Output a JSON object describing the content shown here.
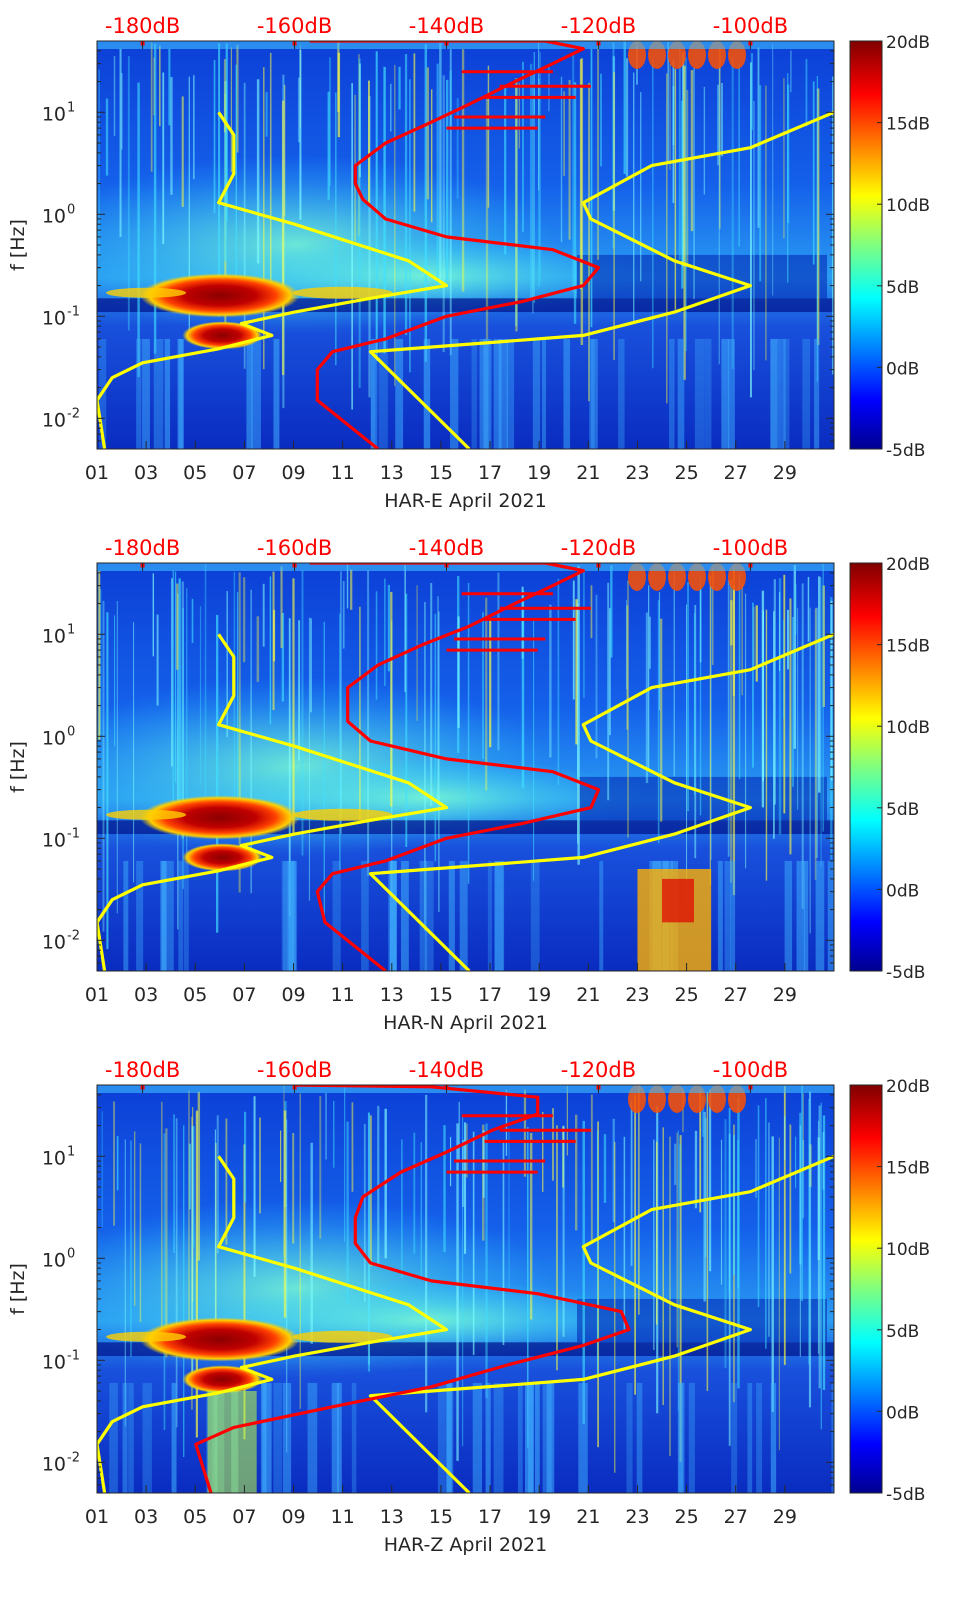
{
  "chart_data": [
    {
      "type": "heatmap",
      "xlabel": "HAR-E April 2021",
      "ylabel": "f [Hz]",
      "x_ticks": [
        "01",
        "03",
        "05",
        "07",
        "09",
        "11",
        "13",
        "15",
        "17",
        "19",
        "21",
        "23",
        "25",
        "27",
        "29"
      ],
      "top_ticks": [
        "-180dB",
        "-160dB",
        "-140dB",
        "-120dB",
        "-100dB"
      ],
      "y_ticks": [
        {
          "label": "10",
          "exp": "-2",
          "value": 0.01
        },
        {
          "label": "10",
          "exp": "-1",
          "value": 0.1
        },
        {
          "label": "10",
          "exp": "0",
          "value": 1
        },
        {
          "label": "10",
          "exp": "1",
          "value": 10
        }
      ],
      "ylim": [
        0.005,
        50
      ],
      "xlim": [
        1,
        31
      ],
      "top_xlim": [
        -186,
        -89
      ],
      "y_scale": "log",
      "colorbar": {
        "min": -5,
        "max": 20,
        "ticks": [
          "20dB",
          "15dB",
          "10dB",
          "5dB",
          "0dB",
          "-5dB"
        ]
      },
      "series": [
        {
          "color": "#ffff00",
          "points": [
            [
              -185,
              0.005
            ],
            [
              -186,
              0.015
            ],
            [
              -184,
              0.025
            ],
            [
              -180,
              0.035
            ],
            [
              -170,
              0.048
            ],
            [
              -163,
              0.065
            ],
            [
              -167,
              0.085
            ],
            [
              -160,
              0.11
            ],
            [
              -150,
              0.15
            ],
            [
              -140,
              0.2
            ],
            [
              -145,
              0.35
            ],
            [
              -160,
              0.8
            ],
            [
              -170,
              1.3
            ],
            [
              -168,
              2.5
            ],
            [
              -168,
              6
            ],
            [
              -170,
              10
            ]
          ]
        },
        {
          "color": "#ffff00",
          "points": [
            [
              -137,
              0.005
            ],
            [
              -150,
              0.045
            ],
            [
              -122,
              0.065
            ],
            [
              -110,
              0.11
            ],
            [
              -100,
              0.2
            ],
            [
              -110,
              0.35
            ],
            [
              -121,
              0.9
            ],
            [
              -122,
              1.3
            ],
            [
              -113,
              3
            ],
            [
              -100,
              4.5
            ],
            [
              -89,
              10
            ]
          ]
        },
        {
          "color": "#ff0000",
          "points": [
            [
              -149,
              0.005
            ],
            [
              -157,
              0.015
            ],
            [
              -157,
              0.03
            ],
            [
              -155,
              0.045
            ],
            [
              -148,
              0.06
            ],
            [
              -140,
              0.1
            ],
            [
              -130,
              0.14
            ],
            [
              -122,
              0.2
            ],
            [
              -120,
              0.3
            ],
            [
              -126,
              0.45
            ],
            [
              -140,
              0.6
            ],
            [
              -148,
              0.9
            ],
            [
              -151,
              1.4
            ],
            [
              -152,
              2
            ],
            [
              -152,
              3
            ],
            [
              -148,
              5
            ],
            [
              -142,
              8
            ],
            [
              -137,
              12
            ],
            [
              -131,
              20
            ],
            [
              -126,
              30
            ],
            [
              -122,
              42
            ],
            [
              -127,
              50
            ],
            [
              -158,
              50
            ]
          ]
        }
      ]
    },
    {
      "type": "heatmap",
      "xlabel": "HAR-N April 2021",
      "ylabel": "f [Hz]",
      "x_ticks": [
        "01",
        "03",
        "05",
        "07",
        "09",
        "11",
        "13",
        "15",
        "17",
        "19",
        "21",
        "23",
        "25",
        "27",
        "29"
      ],
      "top_ticks": [
        "-180dB",
        "-160dB",
        "-140dB",
        "-120dB",
        "-100dB"
      ],
      "y_ticks": [
        {
          "label": "10",
          "exp": "-2",
          "value": 0.01
        },
        {
          "label": "10",
          "exp": "-1",
          "value": 0.1
        },
        {
          "label": "10",
          "exp": "0",
          "value": 1
        },
        {
          "label": "10",
          "exp": "1",
          "value": 10
        }
      ],
      "ylim": [
        0.005,
        50
      ],
      "xlim": [
        1,
        31
      ],
      "top_xlim": [
        -186,
        -89
      ],
      "y_scale": "log",
      "colorbar": {
        "min": -5,
        "max": 20,
        "ticks": [
          "20dB",
          "15dB",
          "10dB",
          "5dB",
          "0dB",
          "-5dB"
        ]
      },
      "series": [
        {
          "color": "#ffff00",
          "points": [
            [
              -185,
              0.005
            ],
            [
              -186,
              0.015
            ],
            [
              -184,
              0.025
            ],
            [
              -180,
              0.035
            ],
            [
              -170,
              0.048
            ],
            [
              -163,
              0.065
            ],
            [
              -167,
              0.085
            ],
            [
              -160,
              0.11
            ],
            [
              -150,
              0.15
            ],
            [
              -140,
              0.2
            ],
            [
              -145,
              0.35
            ],
            [
              -160,
              0.8
            ],
            [
              -170,
              1.3
            ],
            [
              -168,
              2.5
            ],
            [
              -168,
              6
            ],
            [
              -170,
              10
            ]
          ]
        },
        {
          "color": "#ffff00",
          "points": [
            [
              -137,
              0.005
            ],
            [
              -150,
              0.045
            ],
            [
              -122,
              0.065
            ],
            [
              -110,
              0.11
            ],
            [
              -100,
              0.2
            ],
            [
              -110,
              0.35
            ],
            [
              -121,
              0.9
            ],
            [
              -122,
              1.3
            ],
            [
              -113,
              3
            ],
            [
              -100,
              4.5
            ],
            [
              -89,
              10
            ]
          ]
        },
        {
          "color": "#ff0000",
          "points": [
            [
              -148,
              0.005
            ],
            [
              -156,
              0.015
            ],
            [
              -157,
              0.03
            ],
            [
              -155,
              0.045
            ],
            [
              -148,
              0.06
            ],
            [
              -140,
              0.1
            ],
            [
              -130,
              0.14
            ],
            [
              -121,
              0.2
            ],
            [
              -120,
              0.3
            ],
            [
              -126,
              0.45
            ],
            [
              -140,
              0.6
            ],
            [
              -150,
              0.9
            ],
            [
              -153,
              1.4
            ],
            [
              -153,
              2
            ],
            [
              -153,
              3
            ],
            [
              -149,
              5
            ],
            [
              -143,
              8
            ],
            [
              -137,
              12
            ],
            [
              -131,
              20
            ],
            [
              -126,
              30
            ],
            [
              -122,
              42
            ],
            [
              -127,
              50
            ],
            [
              -158,
              50
            ]
          ]
        }
      ]
    },
    {
      "type": "heatmap",
      "xlabel": "HAR-Z April 2021",
      "ylabel": "f [Hz]",
      "x_ticks": [
        "01",
        "03",
        "05",
        "07",
        "09",
        "11",
        "13",
        "15",
        "17",
        "19",
        "21",
        "23",
        "25",
        "27",
        "29"
      ],
      "top_ticks": [
        "-180dB",
        "-160dB",
        "-140dB",
        "-120dB",
        "-100dB"
      ],
      "y_ticks": [
        {
          "label": "10",
          "exp": "-2",
          "value": 0.01
        },
        {
          "label": "10",
          "exp": "-1",
          "value": 0.1
        },
        {
          "label": "10",
          "exp": "0",
          "value": 1
        },
        {
          "label": "10",
          "exp": "1",
          "value": 10
        }
      ],
      "ylim": [
        0.005,
        50
      ],
      "xlim": [
        1,
        31
      ],
      "top_xlim": [
        -186,
        -89
      ],
      "y_scale": "log",
      "colorbar": {
        "min": -5,
        "max": 20,
        "ticks": [
          "20dB",
          "15dB",
          "10dB",
          "5dB",
          "0dB",
          "-5dB"
        ]
      },
      "series": [
        {
          "color": "#ffff00",
          "points": [
            [
              -185,
              0.005
            ],
            [
              -186,
              0.015
            ],
            [
              -184,
              0.025
            ],
            [
              -180,
              0.035
            ],
            [
              -170,
              0.048
            ],
            [
              -163,
              0.065
            ],
            [
              -167,
              0.085
            ],
            [
              -160,
              0.11
            ],
            [
              -150,
              0.15
            ],
            [
              -140,
              0.2
            ],
            [
              -145,
              0.35
            ],
            [
              -160,
              0.8
            ],
            [
              -170,
              1.3
            ],
            [
              -168,
              2.5
            ],
            [
              -168,
              6
            ],
            [
              -170,
              10
            ]
          ]
        },
        {
          "color": "#ffff00",
          "points": [
            [
              -137,
              0.005
            ],
            [
              -150,
              0.045
            ],
            [
              -122,
              0.065
            ],
            [
              -110,
              0.11
            ],
            [
              -100,
              0.2
            ],
            [
              -110,
              0.35
            ],
            [
              -121,
              0.9
            ],
            [
              -122,
              1.3
            ],
            [
              -113,
              3
            ],
            [
              -100,
              4.5
            ],
            [
              -89,
              10
            ]
          ]
        },
        {
          "color": "#ff0000",
          "points": [
            [
              -171,
              0.005
            ],
            [
              -173,
              0.015
            ],
            [
              -168,
              0.022
            ],
            [
              -155,
              0.035
            ],
            [
              -142,
              0.055
            ],
            [
              -132,
              0.09
            ],
            [
              -122,
              0.14
            ],
            [
              -116,
              0.2
            ],
            [
              -117,
              0.3
            ],
            [
              -128,
              0.45
            ],
            [
              -142,
              0.6
            ],
            [
              -150,
              0.9
            ],
            [
              -152,
              1.4
            ],
            [
              -152,
              2.5
            ],
            [
              -151,
              4
            ],
            [
              -146,
              7
            ],
            [
              -140,
              11
            ],
            [
              -134,
              18
            ],
            [
              -128,
              26
            ],
            [
              -128,
              38
            ],
            [
              -142,
              48
            ],
            [
              -160,
              50
            ]
          ]
        }
      ]
    }
  ]
}
